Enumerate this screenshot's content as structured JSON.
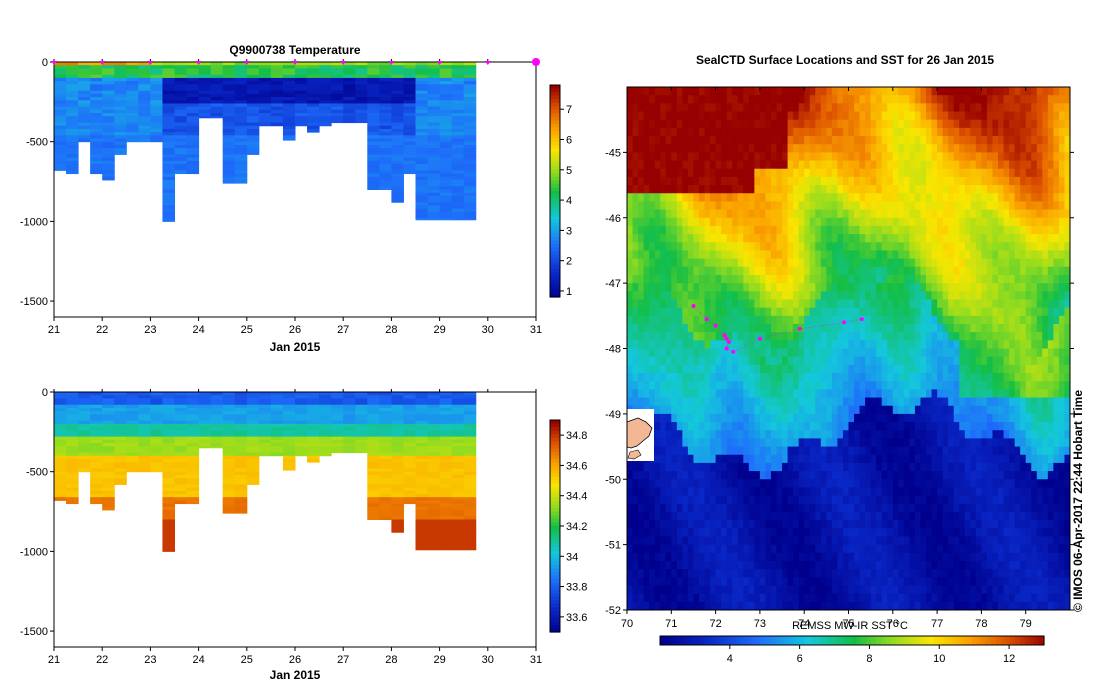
{
  "chart_data": [
    {
      "type": "heatmap",
      "title": "Q9900738  Temperature",
      "xlabel": "Jan 2015",
      "ylabel": "",
      "xlim": [
        21,
        31
      ],
      "ylim": [
        -1600,
        0
      ],
      "x_ticks": [
        "21",
        "22",
        "23",
        "24",
        "25",
        "26",
        "27",
        "28",
        "29",
        "30",
        "31"
      ],
      "y_ticks": [
        "0",
        "-500",
        "-1000",
        "-1500"
      ],
      "colorbar_ticks": [
        "1",
        "2",
        "3",
        "4",
        "5",
        "6",
        "7"
      ],
      "colorbar_range": [
        0.8,
        7.8
      ],
      "surface_profile_times": [
        21.0,
        22.0,
        23.0,
        24.0,
        25.0,
        26.0,
        27.0,
        28.0,
        29.0,
        30.0,
        31.0
      ],
      "profile_max_depth_m": [
        [
          21.0,
          -680
        ],
        [
          21.25,
          -700
        ],
        [
          21.5,
          -500
        ],
        [
          21.75,
          -700
        ],
        [
          22.0,
          -740
        ],
        [
          22.25,
          -580
        ],
        [
          22.5,
          -500
        ],
        [
          22.75,
          -500
        ],
        [
          23.0,
          -500
        ],
        [
          23.25,
          -1000
        ],
        [
          23.5,
          -700
        ],
        [
          23.75,
          -700
        ],
        [
          24.0,
          -350
        ],
        [
          24.25,
          -350
        ],
        [
          24.5,
          -760
        ],
        [
          24.75,
          -760
        ],
        [
          25.0,
          -580
        ],
        [
          25.25,
          -400
        ],
        [
          25.5,
          -400
        ],
        [
          25.75,
          -490
        ],
        [
          26.0,
          -400
        ],
        [
          26.25,
          -440
        ],
        [
          26.5,
          -400
        ],
        [
          26.75,
          -380
        ],
        [
          27.0,
          -380
        ],
        [
          27.25,
          -380
        ],
        [
          27.5,
          -800
        ],
        [
          27.75,
          -800
        ],
        [
          28.0,
          -880
        ],
        [
          28.25,
          -700
        ],
        [
          28.5,
          -990
        ],
        [
          28.75,
          -990
        ],
        [
          29.0,
          -990
        ],
        [
          29.25,
          -990
        ],
        [
          29.5,
          -990
        ]
      ]
    },
    {
      "type": "heatmap",
      "title": "",
      "xlabel": "Jan 2015",
      "ylabel": "",
      "xlim": [
        21,
        31
      ],
      "ylim": [
        -1600,
        0
      ],
      "x_ticks": [
        "21",
        "22",
        "23",
        "24",
        "25",
        "26",
        "27",
        "28",
        "29",
        "30",
        "31"
      ],
      "y_ticks": [
        "0",
        "-500",
        "-1000",
        "-1500"
      ],
      "colorbar_ticks": [
        "33.6",
        "33.8",
        "34",
        "34.2",
        "34.4",
        "34.6",
        "34.8"
      ],
      "colorbar_range": [
        33.5,
        34.9
      ]
    },
    {
      "type": "heatmap",
      "title": "SealCTD Surface Locations and SST for 26 Jan 2015",
      "xlabel": "",
      "ylabel": "",
      "xlim": [
        70,
        80
      ],
      "ylim": [
        -52,
        -44
      ],
      "x_ticks": [
        "70",
        "71",
        "72",
        "73",
        "74",
        "75",
        "76",
        "77",
        "78",
        "79"
      ],
      "y_ticks": [
        "-45",
        "-46",
        "-47",
        "-48",
        "-49",
        "-50",
        "-51",
        "-52"
      ],
      "colorbar_label": "REMSS MW-IR SST °C",
      "colorbar_ticks": [
        "4",
        "6",
        "8",
        "10",
        "12"
      ],
      "colorbar_range": [
        2,
        13
      ],
      "surface_locations": [
        [
          71.5,
          -47.35
        ],
        [
          71.8,
          -47.55
        ],
        [
          72.0,
          -47.65
        ],
        [
          72.2,
          -47.8
        ],
        [
          72.25,
          -47.85
        ],
        [
          72.3,
          -47.9
        ],
        [
          72.25,
          -48.0
        ],
        [
          72.4,
          -48.05
        ],
        [
          73.0,
          -47.85
        ],
        [
          73.9,
          -47.7
        ],
        [
          74.9,
          -47.6
        ],
        [
          75.3,
          -47.55
        ]
      ]
    }
  ],
  "side_text": "© IMOS 06-Apr-2017 22:44 Hobart Time"
}
